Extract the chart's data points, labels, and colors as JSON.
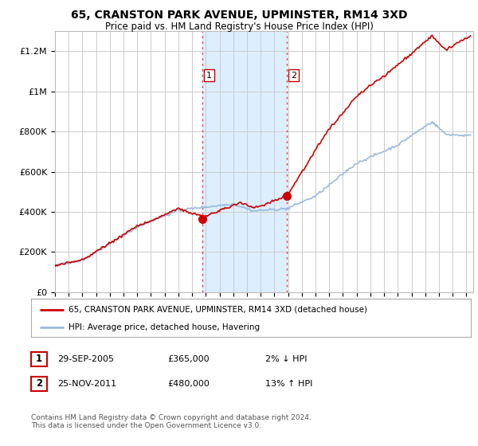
{
  "title": "65, CRANSTON PARK AVENUE, UPMINSTER, RM14 3XD",
  "subtitle": "Price paid vs. HM Land Registry's House Price Index (HPI)",
  "background_color": "#ffffff",
  "plot_bg_color": "#ffffff",
  "grid_color": "#cccccc",
  "red_line_color": "#cc0000",
  "blue_line_color": "#99bbdd",
  "shade_color": "#ddeeff",
  "sale1_date_num": 2005.75,
  "sale2_date_num": 2011.9,
  "legend_entries": [
    "65, CRANSTON PARK AVENUE, UPMINSTER, RM14 3XD (detached house)",
    "HPI: Average price, detached house, Havering"
  ],
  "info_rows": [
    {
      "num": "1",
      "date": "29-SEP-2005",
      "price": "£365,000",
      "change": "2% ↓ HPI"
    },
    {
      "num": "2",
      "date": "25-NOV-2011",
      "price": "£480,000",
      "change": "13% ↑ HPI"
    }
  ],
  "footnote": "Contains HM Land Registry data © Crown copyright and database right 2024.\nThis data is licensed under the Open Government Licence v3.0.",
  "ylim": [
    0,
    1300000
  ],
  "yticks": [
    0,
    200000,
    400000,
    600000,
    800000,
    1000000,
    1200000
  ],
  "ytick_labels": [
    "£0",
    "£200K",
    "£400K",
    "£600K",
    "£800K",
    "£1M",
    "£1.2M"
  ],
  "xmin": 1995.0,
  "xmax": 2025.5
}
